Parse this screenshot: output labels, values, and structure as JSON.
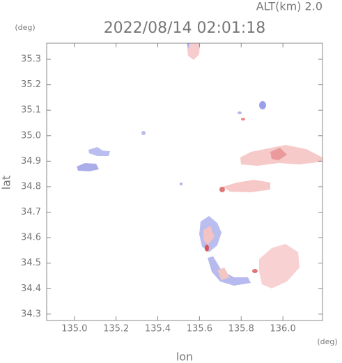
{
  "chart_data": {
    "type": "radar-map",
    "title": "2022/08/14 02:01:18",
    "subtitle": "ALT(km) 2.0",
    "x_label": "lon",
    "y_label": "lat",
    "x_unit": "(deg)",
    "y_unit": "(deg)",
    "xlim": [
      134.867,
      136.19
    ],
    "ylim": [
      34.275,
      35.363
    ],
    "xticks": [
      {
        "value": 135,
        "label": "135.0"
      },
      135.2,
      135.4,
      135.6,
      135.8,
      {
        "value": 136,
        "label": "136.0"
      }
    ],
    "yticks": [
      34.3,
      34.4,
      34.5,
      34.6,
      34.7,
      34.8,
      34.9,
      {
        "value": 35,
        "label": "35.0"
      },
      35.1,
      35.2,
      35.3
    ]
  }
}
